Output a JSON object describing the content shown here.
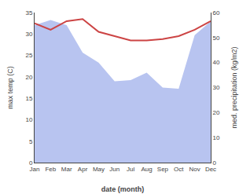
{
  "chart_data": {
    "type": "line",
    "xlabel": "date (month)",
    "ylabel": "max temp (C)",
    "y2label": "med. precipitation (kg/m2)",
    "categories": [
      "Jan",
      "Feb",
      "Mar",
      "Apr",
      "May",
      "Jun",
      "Jul",
      "Aug",
      "Sep",
      "Oct",
      "Nov",
      "Dec"
    ],
    "series": [
      {
        "type": "line",
        "color": "#cc4444",
        "values": [
          32.5,
          31.0,
          33.0,
          33.5,
          30.5,
          29.5,
          28.5,
          28.5,
          28.8,
          29.5,
          31.0,
          33.0
        ]
      },
      {
        "type": "area",
        "axis": "y2",
        "color": "#b8c4f0",
        "values": [
          55.0,
          57.0,
          55.0,
          44.0,
          40.0,
          32.5,
          33.0,
          36.0,
          30.0,
          29.5,
          51.0,
          56.5
        ]
      }
    ],
    "ylim": [
      0,
      35
    ],
    "yticks": [
      0,
      5,
      10,
      15,
      20,
      25,
      30,
      35
    ],
    "y2lim": [
      0,
      60
    ],
    "y2ticks": [
      0,
      10,
      20,
      30,
      40,
      50,
      60
    ],
    "grid": false
  }
}
